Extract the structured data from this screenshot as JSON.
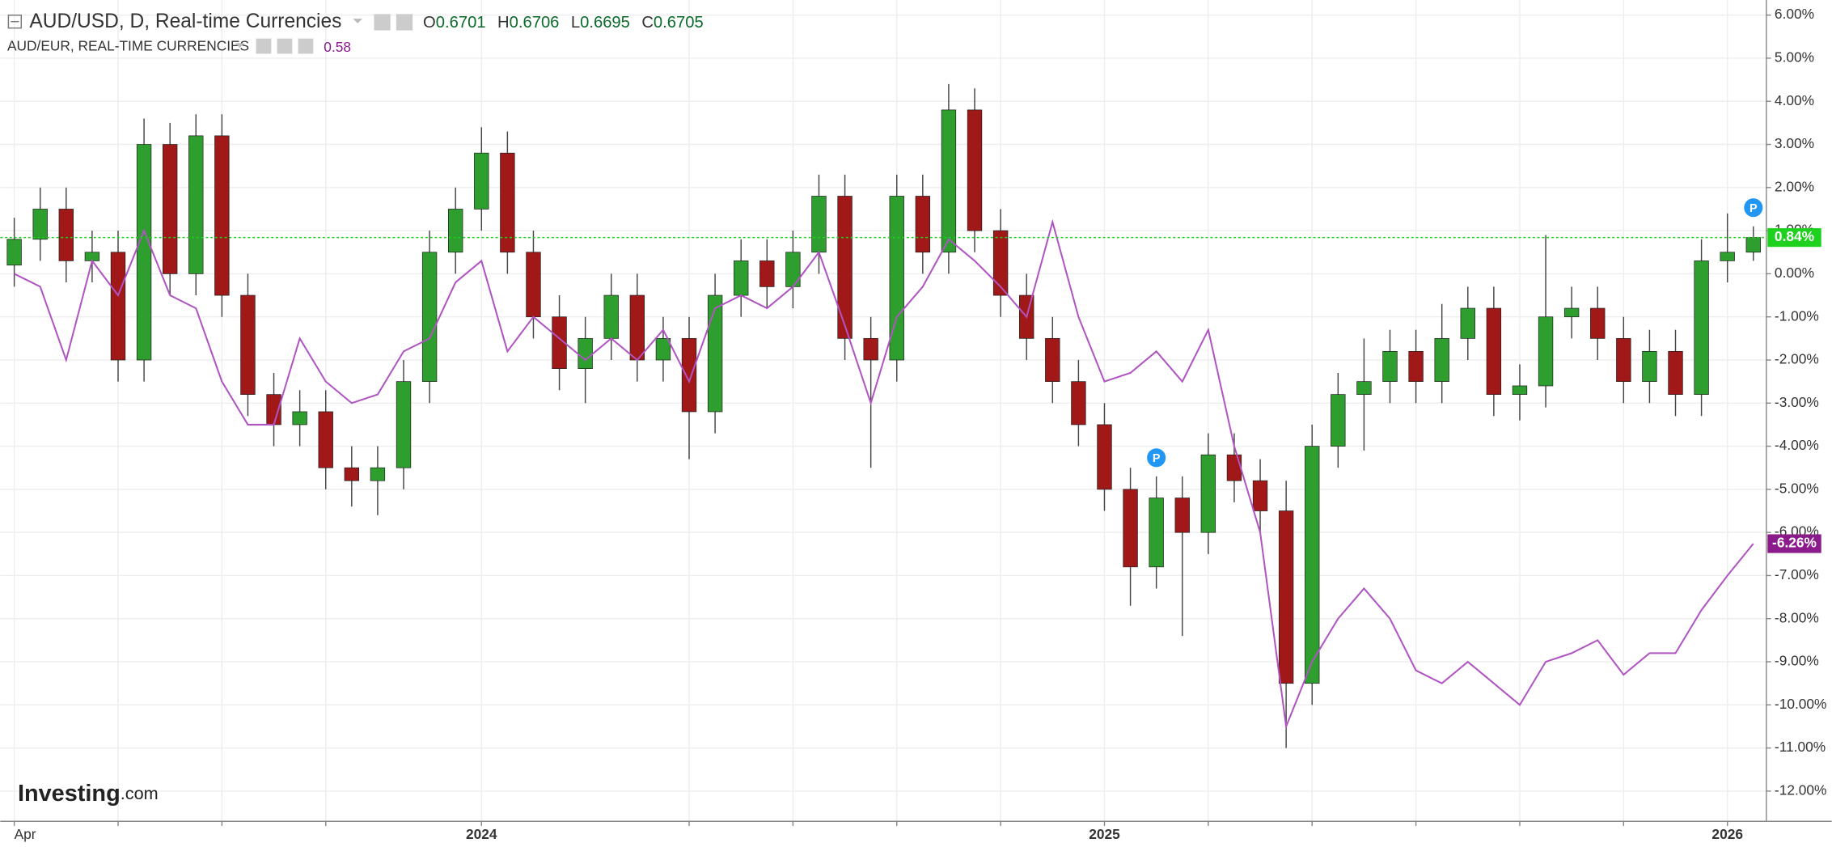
{
  "chart_data": {
    "type": "candlestick",
    "title": "AUD/USD, D, Real-time Currencies",
    "ohlc": [
      {
        "name": "O",
        "value": 0.6701
      },
      {
        "name": "H",
        "value": 0.6706
      },
      {
        "name": "L",
        "value": 0.6695
      },
      {
        "name": "C",
        "value": 0.6705
      }
    ],
    "x": [
      0,
      0.5,
      1,
      1.5,
      2,
      2.5,
      3,
      3.5,
      4,
      4.5,
      5,
      5.5,
      6,
      6.5,
      7,
      7.5,
      8,
      8.5,
      9,
      9.5,
      10,
      10.5,
      11,
      11.5,
      12,
      12.5,
      13,
      13.5,
      14,
      14.5,
      15,
      15.5,
      16,
      16.5,
      17,
      17.5,
      18,
      18.5,
      19,
      19.5,
      20,
      20.5,
      21,
      21.5,
      22,
      22.5,
      23,
      23.5,
      24,
      24.5,
      25,
      25.5,
      26,
      26.5,
      27,
      27.5,
      28,
      28.5,
      29,
      29.5,
      30,
      30.5,
      31,
      31.5,
      32,
      32.5,
      33,
      33.5
    ],
    "xlim": [
      -0.27,
      33.75
    ],
    "xticks": [
      {
        "value": 0,
        "label": "Apr"
      },
      {
        "value": 2,
        "label": null
      },
      {
        "value": 4,
        "label": null
      },
      {
        "value": 6,
        "label": null
      },
      {
        "value": 9,
        "label": "2024"
      },
      {
        "value": 13,
        "label": null
      },
      {
        "value": 15,
        "label": null
      },
      {
        "value": 17,
        "label": null
      },
      {
        "value": 19,
        "label": null
      },
      {
        "value": 21,
        "label": "2025"
      },
      {
        "value": 23,
        "label": null
      },
      {
        "value": 25,
        "label": null
      },
      {
        "value": 27,
        "label": null
      },
      {
        "value": 29,
        "label": null
      },
      {
        "value": 31,
        "label": null
      },
      {
        "value": 33,
        "label": "2026"
      }
    ],
    "ylim": [
      -12.7,
      6.35
    ],
    "yticks": [
      {
        "value": 6,
        "label": "6.00%"
      },
      {
        "value": 5,
        "label": "5.00%"
      },
      {
        "value": 4,
        "label": "4.00%"
      },
      {
        "value": 3,
        "label": "3.00%"
      },
      {
        "value": 2,
        "label": "2.00%"
      },
      {
        "value": 1,
        "label": "1.00%"
      },
      {
        "value": 0,
        "label": "0.00%"
      },
      {
        "value": -1,
        "label": "-1.00%"
      },
      {
        "value": -2,
        "label": "-2.00%"
      },
      {
        "value": -3,
        "label": "-3.00%"
      },
      {
        "value": -4,
        "label": "-4.00%"
      },
      {
        "value": -5,
        "label": "-5.00%"
      },
      {
        "value": -6,
        "label": "-6.00%"
      },
      {
        "value": -7,
        "label": "-7.00%"
      },
      {
        "value": -8,
        "label": "-8.00%"
      },
      {
        "value": -9,
        "label": "-9.00%"
      },
      {
        "value": -10,
        "label": "-10.00%"
      },
      {
        "value": -11,
        "label": "-11.00%"
      },
      {
        "value": -12,
        "label": "-12.00%"
      }
    ],
    "grid": true,
    "series": [
      {
        "type": "candlestick",
        "up_color": "#2e9e2e",
        "down_color": "#a01818",
        "open": [
          0.2,
          0.8,
          1.5,
          0.3,
          0.5,
          -2.0,
          3.0,
          0.0,
          3.2,
          -0.5,
          -2.8,
          -3.5,
          -3.2,
          -4.5,
          -4.8,
          -4.5,
          -2.5,
          0.5,
          1.5,
          2.8,
          0.5,
          -1.0,
          -2.2,
          -1.5,
          -0.5,
          -2.0,
          -1.5,
          -3.2,
          -0.5,
          0.3,
          -0.3,
          0.5,
          1.8,
          -1.5,
          -2.0,
          1.8,
          0.5,
          3.8,
          1.0,
          -0.5,
          -1.5,
          -2.5,
          -3.5,
          -5.0,
          -6.8,
          -5.2,
          -6.0,
          -4.2,
          -4.8,
          -5.5,
          -9.5,
          -4.0,
          -2.8,
          -2.5,
          -1.8,
          -2.5,
          -1.5,
          -0.8,
          -2.8,
          -2.6,
          -1.0,
          -0.8,
          -1.5,
          -2.5,
          -1.8,
          -2.8,
          0.3,
          0.5
        ],
        "high": [
          1.3,
          2.0,
          2.0,
          1.0,
          1.0,
          3.6,
          3.5,
          3.7,
          3.7,
          0.0,
          -2.3,
          -2.7,
          -2.7,
          -4.0,
          -4.0,
          -2.0,
          1.0,
          2.0,
          3.4,
          3.3,
          1.0,
          -0.5,
          -1.0,
          0.0,
          0.0,
          -1.0,
          -1.0,
          0.0,
          0.8,
          0.8,
          1.0,
          2.3,
          2.3,
          -1.0,
          2.3,
          2.3,
          4.4,
          4.3,
          1.5,
          0.0,
          -1.0,
          -2.0,
          -3.0,
          -4.5,
          -4.7,
          -4.7,
          -3.7,
          -3.7,
          -4.3,
          -4.8,
          -3.5,
          -2.3,
          -1.5,
          -1.3,
          -1.3,
          -0.7,
          -0.3,
          -0.3,
          -2.1,
          0.9,
          -0.3,
          -0.3,
          -1.0,
          -1.3,
          -1.3,
          0.8,
          1.4,
          1.1
        ],
        "low": [
          -0.3,
          0.3,
          -0.2,
          -0.2,
          -2.5,
          -2.5,
          -0.5,
          -0.5,
          -1.0,
          -3.3,
          -4.0,
          -4.0,
          -5.0,
          -5.4,
          -5.6,
          -5.0,
          -3.0,
          0.0,
          1.0,
          0.0,
          -1.5,
          -2.7,
          -3.0,
          -2.0,
          -2.5,
          -2.5,
          -4.3,
          -3.7,
          -1.0,
          -0.8,
          -0.8,
          0.0,
          -2.0,
          -4.5,
          -2.5,
          0.0,
          0.0,
          0.5,
          -1.0,
          -2.0,
          -3.0,
          -4.0,
          -5.5,
          -7.7,
          -7.3,
          -8.4,
          -6.5,
          -5.3,
          -6.0,
          -11.0,
          -10.0,
          -4.5,
          -4.1,
          -3.0,
          -3.0,
          -3.0,
          -2.0,
          -3.3,
          -3.4,
          -3.1,
          -1.5,
          -2.0,
          -3.0,
          -3.0,
          -3.3,
          -3.3,
          -0.2,
          0.3
        ],
        "close": [
          0.8,
          1.5,
          0.3,
          0.5,
          -2.0,
          3.0,
          0.0,
          3.2,
          -0.5,
          -2.8,
          -3.5,
          -3.2,
          -4.5,
          -4.8,
          -4.5,
          -2.5,
          0.5,
          1.5,
          2.8,
          0.5,
          -1.0,
          -2.2,
          -1.5,
          -0.5,
          -2.0,
          -1.5,
          -3.2,
          -0.5,
          0.3,
          -0.3,
          0.5,
          1.8,
          -1.5,
          -2.0,
          1.8,
          0.5,
          3.8,
          1.0,
          -0.5,
          -1.5,
          -2.5,
          -3.5,
          -5.0,
          -6.8,
          -5.2,
          -6.0,
          -4.2,
          -4.8,
          -5.5,
          -9.5,
          -4.0,
          -2.8,
          -2.5,
          -1.8,
          -2.5,
          -1.5,
          -0.8,
          -2.8,
          -2.6,
          -1.0,
          -0.8,
          -1.5,
          -2.5,
          -1.8,
          -2.8,
          0.3,
          0.5,
          0.84
        ]
      },
      {
        "type": "line",
        "name": "AUD/EUR, REAL-TIME CURRENCIES",
        "indicator_value": 0.58,
        "color": "#b054c2",
        "values": [
          0.0,
          -0.3,
          -2.0,
          0.3,
          -0.5,
          1.0,
          -0.5,
          -0.8,
          -2.5,
          -3.5,
          -3.5,
          -1.5,
          -2.5,
          -3.0,
          -2.8,
          -1.8,
          -1.5,
          -0.2,
          0.3,
          -1.8,
          -1.0,
          -1.5,
          -2.0,
          -1.5,
          -2.0,
          -1.3,
          -2.5,
          -0.8,
          -0.5,
          -0.8,
          -0.3,
          0.5,
          -1.2,
          -3.0,
          -1.0,
          -0.3,
          0.8,
          0.3,
          -0.3,
          -1.0,
          1.2,
          -1.0,
          -2.5,
          -2.3,
          -1.8,
          -2.5,
          -1.3,
          -4.0,
          -6.0,
          -10.5,
          -9.0,
          -8.0,
          -7.3,
          -8.0,
          -9.2,
          -9.5,
          -9.0,
          -9.5,
          -10.0,
          -9.0,
          -8.8,
          -8.5,
          -9.3,
          -8.8,
          -8.8,
          -7.8,
          -7.0,
          -6.26
        ]
      }
    ],
    "price_lines": [
      {
        "value": 0.84,
        "label": "0.84%",
        "color": "#1fd11f"
      },
      {
        "value": -6.26,
        "label": "-6.26%",
        "color": "#8b1a8b"
      }
    ],
    "markers": [
      {
        "x": 22,
        "label": "P"
      },
      {
        "x": 33.5,
        "label": "P"
      }
    ]
  },
  "branding": {
    "name": "Investing",
    "suffix": ".com"
  }
}
